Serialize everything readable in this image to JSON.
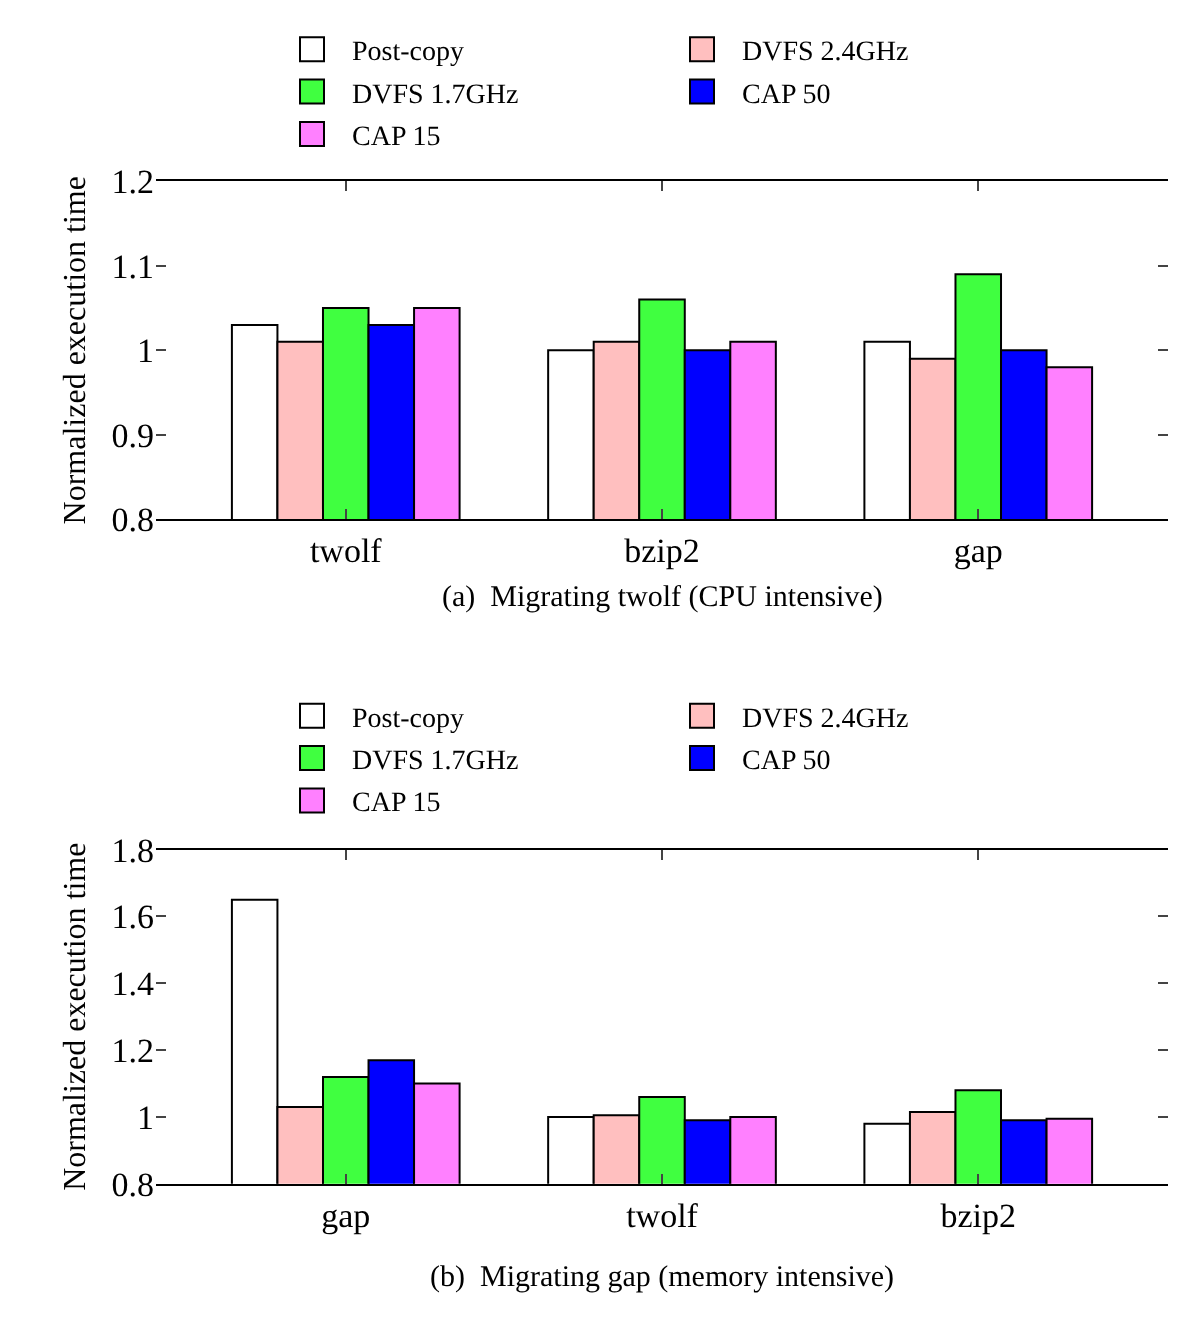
{
  "chart_data": [
    {
      "type": "bar",
      "categories": [
        "twolf",
        "bzip2",
        "gap"
      ],
      "ylabel": "Normalized execution time",
      "ylim": [
        0.8,
        1.2
      ],
      "yticks": [
        0.8,
        0.9,
        1,
        1.1,
        1.2
      ],
      "legend": "top",
      "annotations": [
        "(a)  Migrating twolf (CPU intensive)"
      ],
      "series": [
        {
          "name": "Post-copy",
          "color": "#ffffff",
          "values": [
            1.03,
            1.0,
            1.01
          ]
        },
        {
          "name": "DVFS 2.4GHz",
          "color": "#ffbfbf",
          "values": [
            1.01,
            1.01,
            0.99
          ]
        },
        {
          "name": "DVFS 1.7GHz",
          "color": "#40ff40",
          "values": [
            1.05,
            1.06,
            1.09
          ]
        },
        {
          "name": "CAP 50",
          "color": "#0000ff",
          "values": [
            1.03,
            1.0,
            1.0
          ]
        },
        {
          "name": "CAP 15",
          "color": "#ff80ff",
          "values": [
            1.05,
            1.01,
            0.98
          ]
        }
      ]
    },
    {
      "type": "bar",
      "categories": [
        "gap",
        "twolf",
        "bzip2"
      ],
      "ylabel": "Normalized execution time",
      "ylim": [
        0.8,
        1.8
      ],
      "yticks": [
        0.8,
        1,
        1.2,
        1.4,
        1.6,
        1.8
      ],
      "legend": "top",
      "annotations": [
        "(b)  Migrating gap (memory intensive)"
      ],
      "series": [
        {
          "name": "Post-copy",
          "color": "#ffffff",
          "values": [
            1.65,
            1.0,
            0.98
          ]
        },
        {
          "name": "DVFS 2.4GHz",
          "color": "#ffbfbf",
          "values": [
            1.03,
            1.005,
            1.015
          ]
        },
        {
          "name": "DVFS 1.7GHz",
          "color": "#40ff40",
          "values": [
            1.12,
            1.06,
            1.08
          ]
        },
        {
          "name": "CAP 50",
          "color": "#0000ff",
          "values": [
            1.17,
            0.99,
            0.99
          ]
        },
        {
          "name": "CAP 15",
          "color": "#ff80ff",
          "values": [
            1.1,
            1.0,
            0.995
          ]
        }
      ]
    }
  ]
}
